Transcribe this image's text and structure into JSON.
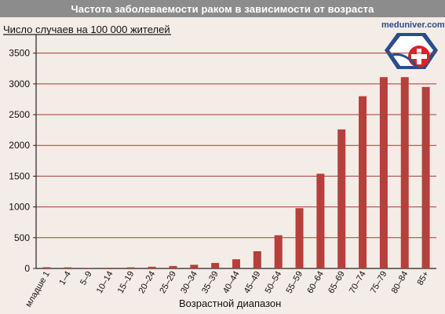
{
  "chart_data": {
    "type": "bar",
    "title": "Частота заболеваемости раком в зависимости от возраста",
    "ylabel": "Число случаев на 100 000 жителей",
    "xlabel": "Возрастной диапазон",
    "categories": [
      "младше 1",
      "1–4",
      "5–9",
      "10–14",
      "15–19",
      "20–24",
      "25–29",
      "30–34",
      "35–39",
      "40–44",
      "45–49",
      "50–54",
      "55–59",
      "60–64",
      "65–69",
      "70–74",
      "75–79",
      "80–84",
      "85+"
    ],
    "values": [
      20,
      18,
      10,
      12,
      18,
      28,
      40,
      60,
      90,
      150,
      280,
      540,
      980,
      1540,
      2260,
      2800,
      3110,
      3110,
      2950
    ],
    "ylim": [
      0,
      3700
    ],
    "yticks": [
      0,
      500,
      1000,
      1500,
      2000,
      2500,
      3000,
      3500
    ],
    "grid": true,
    "bar_color": "#b5403c",
    "grid_color": "#a83a34"
  },
  "logo": {
    "text": "meduniver.com",
    "name": "meduniver-logo"
  }
}
